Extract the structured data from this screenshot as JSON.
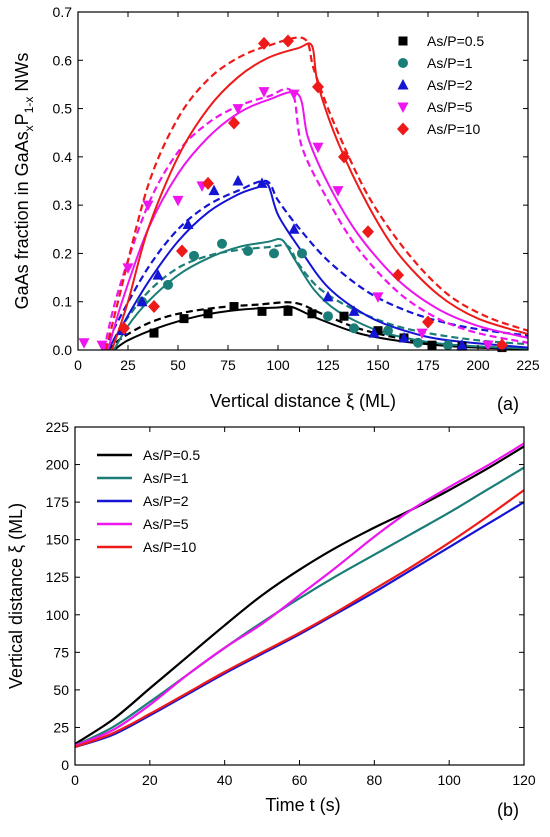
{
  "colors": {
    "As/P=0.5": "#000000",
    "As/P=1": "#1a7d77",
    "As/P=2": "#1414d4",
    "As/P=5": "#ee15ee",
    "As/P=10": "#ee1a1a"
  },
  "chart_data": [
    {
      "type": "scatter",
      "panel_label": "(a)",
      "xlabel": "Vertical distance ξ (ML)",
      "ylabel_parts": [
        "GaAs fraction in GaAs",
        "x",
        "P",
        "1-x",
        " NWs"
      ],
      "xlim": [
        0,
        225
      ],
      "ylim": [
        0,
        0.7
      ],
      "xticks": [
        0,
        25,
        50,
        75,
        100,
        125,
        150,
        175,
        200,
        225
      ],
      "yticks": [
        0.0,
        0.1,
        0.2,
        0.3,
        0.4,
        0.5,
        0.6,
        0.7
      ],
      "ytick_labels": [
        "0.0",
        "0.1",
        "0.2",
        "0.3",
        "0.4",
        "0.5",
        "0.6",
        "0.7"
      ],
      "legend_position": "top-right",
      "series": [
        {
          "name": "As/P=0.5",
          "marker": "square",
          "points": [
            [
              38,
              0.035
            ],
            [
              53,
              0.065
            ],
            [
              65,
              0.075
            ],
            [
              78,
              0.09
            ],
            [
              92,
              0.08
            ],
            [
              105,
              0.08
            ],
            [
              117,
              0.075
            ],
            [
              133,
              0.07
            ],
            [
              150,
              0.04
            ],
            [
              163,
              0.025
            ],
            [
              177,
              0.01
            ],
            [
              192,
              0.008
            ],
            [
              212,
              0.005
            ]
          ],
          "solid_line": [
            [
              18,
              0.0
            ],
            [
              25,
              0.02
            ],
            [
              40,
              0.046
            ],
            [
              60,
              0.07
            ],
            [
              80,
              0.083
            ],
            [
              100,
              0.088
            ],
            [
              107,
              0.089
            ],
            [
              120,
              0.065
            ],
            [
              140,
              0.035
            ],
            [
              160,
              0.019
            ],
            [
              180,
              0.01
            ],
            [
              200,
              0.005
            ],
            [
              225,
              0.002
            ]
          ],
          "dashed_line": [
            [
              15,
              0.0
            ],
            [
              22,
              0.025
            ],
            [
              35,
              0.055
            ],
            [
              50,
              0.075
            ],
            [
              70,
              0.088
            ],
            [
              90,
              0.094
            ],
            [
              108,
              0.098
            ],
            [
              122,
              0.075
            ],
            [
              140,
              0.045
            ],
            [
              160,
              0.025
            ],
            [
              180,
              0.013
            ],
            [
              200,
              0.007
            ],
            [
              225,
              0.003
            ]
          ]
        },
        {
          "name": "As/P=1",
          "marker": "circle",
          "points": [
            [
              32,
              0.1
            ],
            [
              45,
              0.135
            ],
            [
              58,
              0.195
            ],
            [
              72,
              0.22
            ],
            [
              85,
              0.205
            ],
            [
              98,
              0.2
            ],
            [
              112,
              0.2
            ],
            [
              125,
              0.07
            ],
            [
              138,
              0.045
            ],
            [
              155,
              0.04
            ],
            [
              170,
              0.015
            ],
            [
              185,
              0.01
            ]
          ],
          "solid_line": [
            [
              18,
              0.0
            ],
            [
              25,
              0.05
            ],
            [
              35,
              0.1
            ],
            [
              50,
              0.155
            ],
            [
              65,
              0.19
            ],
            [
              80,
              0.213
            ],
            [
              95,
              0.224
            ],
            [
              102,
              0.228
            ],
            [
              108,
              0.19
            ],
            [
              118,
              0.125
            ],
            [
              130,
              0.08
            ],
            [
              150,
              0.04
            ],
            [
              170,
              0.02
            ],
            [
              190,
              0.01
            ],
            [
              225,
              0.003
            ]
          ],
          "dashed_line": [
            [
              15,
              0.0
            ],
            [
              22,
              0.05
            ],
            [
              35,
              0.12
            ],
            [
              50,
              0.17
            ],
            [
              65,
              0.195
            ],
            [
              80,
              0.207
            ],
            [
              95,
              0.213
            ],
            [
              105,
              0.215
            ],
            [
              110,
              0.18
            ],
            [
              120,
              0.13
            ],
            [
              135,
              0.09
            ],
            [
              155,
              0.055
            ],
            [
              175,
              0.035
            ],
            [
              200,
              0.02
            ],
            [
              225,
              0.012
            ]
          ]
        },
        {
          "name": "As/P=2",
          "marker": "triangle",
          "points": [
            [
              22,
              0.04
            ],
            [
              32,
              0.1
            ],
            [
              40,
              0.155
            ],
            [
              55,
              0.26
            ],
            [
              68,
              0.33
            ],
            [
              80,
              0.35
            ],
            [
              92,
              0.345
            ],
            [
              108,
              0.25
            ],
            [
              125,
              0.11
            ],
            [
              138,
              0.08
            ],
            [
              148,
              0.035
            ],
            [
              163,
              0.025
            ],
            [
              192,
              0.01
            ],
            [
              212,
              0.01
            ]
          ],
          "solid_line": [
            [
              15,
              0.0
            ],
            [
              22,
              0.05
            ],
            [
              35,
              0.14
            ],
            [
              50,
              0.225
            ],
            [
              65,
              0.285
            ],
            [
              80,
              0.322
            ],
            [
              90,
              0.337
            ],
            [
              95,
              0.342
            ],
            [
              100,
              0.28
            ],
            [
              110,
              0.215
            ],
            [
              125,
              0.13
            ],
            [
              145,
              0.07
            ],
            [
              165,
              0.038
            ],
            [
              185,
              0.02
            ],
            [
              225,
              0.005
            ]
          ],
          "dashed_line": [
            [
              13,
              0.0
            ],
            [
              20,
              0.06
            ],
            [
              35,
              0.17
            ],
            [
              50,
              0.25
            ],
            [
              65,
              0.3
            ],
            [
              80,
              0.33
            ],
            [
              94,
              0.35
            ],
            [
              100,
              0.31
            ],
            [
              110,
              0.255
            ],
            [
              125,
              0.185
            ],
            [
              145,
              0.12
            ],
            [
              165,
              0.08
            ],
            [
              185,
              0.055
            ],
            [
              205,
              0.04
            ],
            [
              225,
              0.03
            ]
          ]
        },
        {
          "name": "As/P=5",
          "marker": "triangle-down",
          "points": [
            [
              3,
              0.015
            ],
            [
              12,
              0.01
            ],
            [
              25,
              0.17
            ],
            [
              35,
              0.3
            ],
            [
              50,
              0.31
            ],
            [
              62,
              0.34
            ],
            [
              80,
              0.5
            ],
            [
              93,
              0.535
            ],
            [
              108,
              0.53
            ],
            [
              120,
              0.42
            ],
            [
              130,
              0.33
            ],
            [
              150,
              0.11
            ],
            [
              172,
              0.035
            ],
            [
              205,
              0.01
            ]
          ],
          "solid_line": [
            [
              15,
              0.0
            ],
            [
              22,
              0.1
            ],
            [
              35,
              0.25
            ],
            [
              50,
              0.365
            ],
            [
              65,
              0.44
            ],
            [
              80,
              0.49
            ],
            [
              95,
              0.518
            ],
            [
              110,
              0.53
            ],
            [
              115,
              0.44
            ],
            [
              125,
              0.345
            ],
            [
              140,
              0.24
            ],
            [
              160,
              0.145
            ],
            [
              180,
              0.085
            ],
            [
              200,
              0.05
            ],
            [
              225,
              0.025
            ]
          ],
          "dashed_line": [
            [
              13,
              0.0
            ],
            [
              20,
              0.12
            ],
            [
              35,
              0.3
            ],
            [
              50,
              0.41
            ],
            [
              65,
              0.47
            ],
            [
              80,
              0.505
            ],
            [
              95,
              0.525
            ],
            [
              107,
              0.535
            ],
            [
              112,
              0.42
            ],
            [
              125,
              0.31
            ],
            [
              140,
              0.21
            ],
            [
              160,
              0.12
            ],
            [
              180,
              0.065
            ],
            [
              200,
              0.035
            ],
            [
              225,
              0.015
            ]
          ]
        },
        {
          "name": "As/P=10",
          "marker": "diamond",
          "points": [
            [
              23,
              0.045
            ],
            [
              38,
              0.09
            ],
            [
              52,
              0.205
            ],
            [
              65,
              0.345
            ],
            [
              78,
              0.47
            ],
            [
              93,
              0.635
            ],
            [
              105,
              0.64
            ],
            [
              120,
              0.545
            ],
            [
              133,
              0.4
            ],
            [
              145,
              0.245
            ],
            [
              160,
              0.155
            ],
            [
              175,
              0.058
            ],
            [
              212,
              0.01
            ]
          ],
          "solid_line": [
            [
              17,
              0.0
            ],
            [
              25,
              0.1
            ],
            [
              35,
              0.25
            ],
            [
              50,
              0.4
            ],
            [
              65,
              0.5
            ],
            [
              80,
              0.565
            ],
            [
              95,
              0.605
            ],
            [
              110,
              0.625
            ],
            [
              117,
              0.63
            ],
            [
              120,
              0.55
            ],
            [
              130,
              0.43
            ],
            [
              145,
              0.3
            ],
            [
              160,
              0.2
            ],
            [
              180,
              0.115
            ],
            [
              200,
              0.065
            ],
            [
              225,
              0.033
            ]
          ],
          "dashed_line": [
            [
              14,
              0.0
            ],
            [
              20,
              0.1
            ],
            [
              35,
              0.34
            ],
            [
              50,
              0.48
            ],
            [
              65,
              0.56
            ],
            [
              80,
              0.605
            ],
            [
              95,
              0.63
            ],
            [
              113,
              0.645
            ],
            [
              118,
              0.58
            ],
            [
              128,
              0.47
            ],
            [
              145,
              0.32
            ],
            [
              165,
              0.2
            ],
            [
              185,
              0.115
            ],
            [
              205,
              0.068
            ],
            [
              225,
              0.04
            ]
          ]
        }
      ]
    },
    {
      "type": "line",
      "panel_label": "(b)",
      "xlabel": "Time t (s)",
      "ylabel": "Vertical distance ξ (ML)",
      "xlim": [
        0,
        120
      ],
      "ylim": [
        0,
        225
      ],
      "xticks": [
        0,
        20,
        40,
        60,
        80,
        100,
        120
      ],
      "yticks": [
        0,
        25,
        50,
        75,
        100,
        125,
        150,
        175,
        200,
        225
      ],
      "legend_position": "top-left",
      "series": [
        {
          "name": "As/P=0.5",
          "x": [
            0,
            10,
            20,
            30,
            40,
            50,
            60,
            70,
            80,
            90,
            100,
            110,
            120
          ],
          "y": [
            14,
            30,
            51,
            72,
            93,
            113,
            130,
            145,
            158,
            170,
            183,
            197,
            212
          ]
        },
        {
          "name": "As/P=1",
          "x": [
            0,
            10,
            20,
            30,
            40,
            50,
            60,
            70,
            80,
            90,
            100,
            110,
            120
          ],
          "y": [
            13,
            25,
            42,
            60,
            78,
            95,
            111,
            126,
            140,
            154,
            168,
            183,
            198
          ]
        },
        {
          "name": "As/P=2",
          "x": [
            0,
            10,
            20,
            30,
            40,
            50,
            60,
            70,
            80,
            90,
            100,
            110,
            120
          ],
          "y": [
            12,
            20,
            33,
            47,
            61,
            74,
            87,
            101,
            115,
            130,
            145,
            160,
            175
          ]
        },
        {
          "name": "As/P=5",
          "x": [
            0,
            10,
            20,
            30,
            40,
            50,
            60,
            70,
            80,
            90,
            100,
            110,
            120
          ],
          "y": [
            13,
            23,
            40,
            60,
            78,
            94,
            113,
            132,
            152,
            170,
            185,
            199,
            214
          ]
        },
        {
          "name": "As/P=10",
          "x": [
            0,
            10,
            20,
            30,
            40,
            50,
            60,
            70,
            80,
            90,
            100,
            110,
            120
          ],
          "y": [
            12,
            21,
            34,
            48,
            62,
            75,
            88,
            102,
            117,
            132,
            148,
            165,
            183
          ]
        }
      ]
    }
  ]
}
